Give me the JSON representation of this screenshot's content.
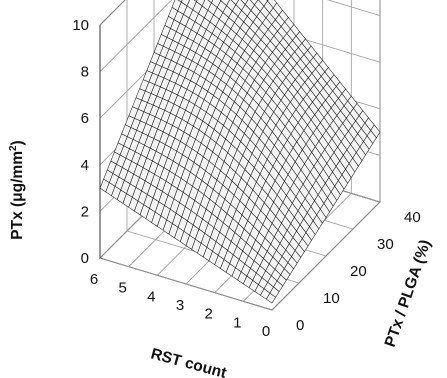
{
  "chart_data": {
    "type": "surface3d",
    "z_axis": {
      "label_prefix": "PTx (μg/mm",
      "label_superscript": "2",
      "label_suffix": ")",
      "ticks": [
        0,
        2,
        4,
        6,
        8,
        10
      ],
      "range": [
        0,
        10
      ]
    },
    "x_axis": {
      "label": "RST count",
      "ticks": [
        6,
        5,
        4,
        3,
        2,
        1,
        0
      ],
      "range": [
        0,
        6
      ]
    },
    "y_axis": {
      "label": "PTx / PLGA (%)",
      "ticks": [
        0,
        10,
        20,
        30,
        40
      ],
      "range": [
        0,
        40
      ]
    },
    "surface_corners": [
      {
        "rst_count": 0,
        "ptx_plga": 0,
        "ptx": 0.3
      },
      {
        "rst_count": 6,
        "ptx_plga": 0,
        "ptx": 3.0
      },
      {
        "rst_count": 0,
        "ptx_plga": 40,
        "ptx": 3.0
      },
      {
        "rst_count": 6,
        "ptx_plga": 40,
        "ptx": 10.0
      }
    ],
    "grid": true,
    "style": "wireframe"
  }
}
